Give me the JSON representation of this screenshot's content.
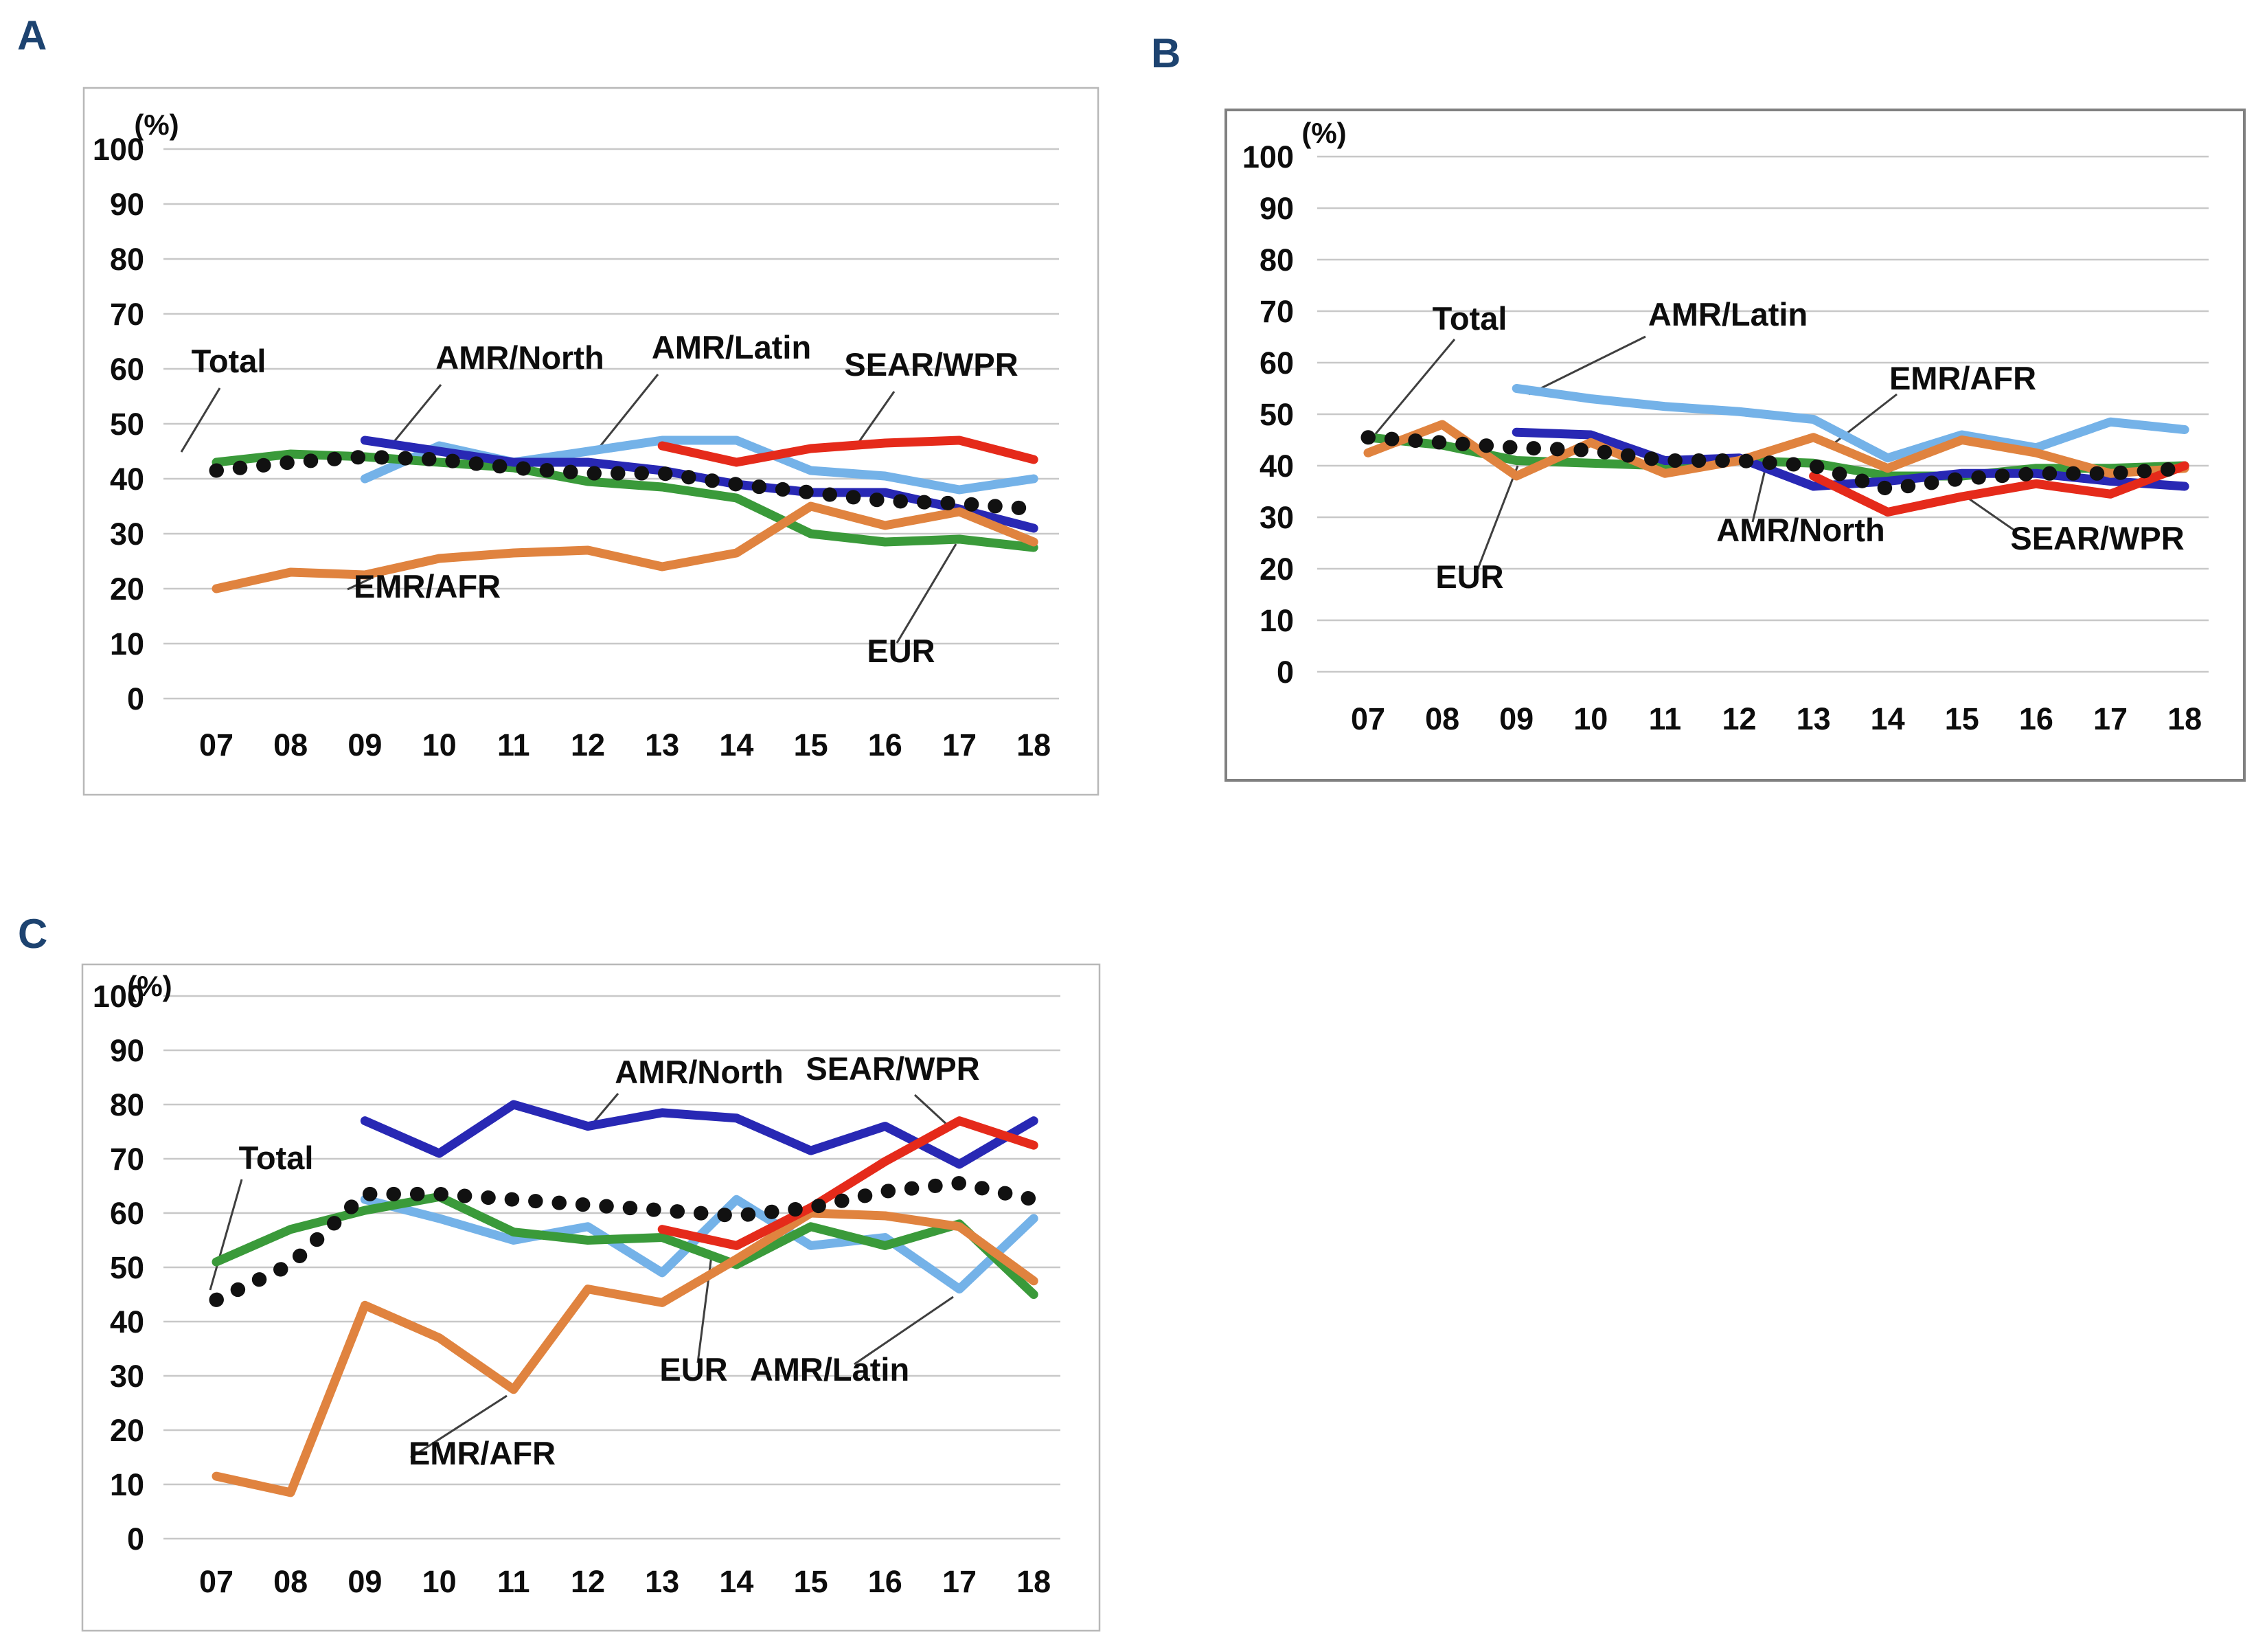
{
  "figure": {
    "background": "#ffffff",
    "panel_letter_color": "#1d4370",
    "gridline_color": "#c8c8c8",
    "leader_line_color": "#3f3f3f",
    "box_border_color_ac": "#b8b8b8",
    "box_border_color_b": "#808080",
    "text_color": "#0d0d0d"
  },
  "chart_data": [
    {
      "panel_label": "A",
      "type": "line",
      "title": "",
      "ylabel": "(%)",
      "xlabel": "",
      "ylim": [
        0,
        100
      ],
      "yticks": [
        0,
        10,
        20,
        30,
        40,
        50,
        60,
        70,
        80,
        90,
        100
      ],
      "grid": "horizontal",
      "legend": "inline-labels",
      "categories": [
        "07",
        "08",
        "09",
        "10",
        "11",
        "12",
        "13",
        "14",
        "15",
        "16",
        "17",
        "18"
      ],
      "series": [
        {
          "name": "Total",
          "color": "#111111",
          "style": "dotted",
          "values": [
            41.5,
            43,
            44,
            43.5,
            42,
            41,
            41,
            39,
            37.5,
            36,
            35.5,
            34.5
          ]
        },
        {
          "name": "AMR/North",
          "color": "#2828b4",
          "style": "solid",
          "values": [
            null,
            null,
            47,
            45,
            43,
            43,
            41.5,
            39,
            37.5,
            37.5,
            34.5,
            31
          ]
        },
        {
          "name": "AMR/Latin",
          "color": "#74b2e8",
          "style": "solid",
          "values": [
            null,
            null,
            40,
            46,
            43,
            45,
            47,
            47,
            41.5,
            40.5,
            38,
            40
          ]
        },
        {
          "name": "SEAR/WPR",
          "color": "#e52a1a",
          "style": "solid",
          "values": [
            null,
            null,
            null,
            null,
            null,
            null,
            46,
            43,
            45.5,
            46.5,
            47,
            43.5
          ]
        },
        {
          "name": "EUR",
          "color": "#3a9a3a",
          "style": "solid",
          "values": [
            43,
            44.5,
            44,
            43,
            42,
            39.5,
            38.5,
            36.5,
            30,
            28.5,
            29,
            27.5
          ]
        },
        {
          "name": "EMR/AFR",
          "color": "#e0833f",
          "style": "solid",
          "values": [
            20,
            23,
            22.5,
            25.5,
            26.5,
            27,
            24,
            26.5,
            35,
            31.5,
            34,
            28.5
          ]
        }
      ]
    },
    {
      "panel_label": "B",
      "type": "line",
      "title": "",
      "ylabel": "(%)",
      "xlabel": "",
      "ylim": [
        0,
        100
      ],
      "yticks": [
        0,
        10,
        20,
        30,
        40,
        50,
        60,
        70,
        80,
        90,
        100
      ],
      "grid": "horizontal",
      "legend": "inline-labels",
      "categories": [
        "07",
        "08",
        "09",
        "10",
        "11",
        "12",
        "13",
        "14",
        "15",
        "16",
        "17",
        "18"
      ],
      "series": [
        {
          "name": "Total",
          "color": "#111111",
          "style": "dotted",
          "values": [
            45.5,
            44.5,
            43.5,
            43,
            41,
            41,
            40,
            35.5,
            37.5,
            38.5,
            38.5,
            39.5
          ]
        },
        {
          "name": "AMR/North",
          "color": "#2828b4",
          "style": "solid",
          "values": [
            null,
            null,
            46.5,
            46,
            41,
            41.5,
            36,
            37,
            38.5,
            38.5,
            37,
            36
          ]
        },
        {
          "name": "AMR/Latin",
          "color": "#74b2e8",
          "style": "solid",
          "values": [
            null,
            null,
            55,
            53,
            51.5,
            50.5,
            49,
            41.5,
            46,
            43.5,
            48.5,
            47
          ]
        },
        {
          "name": "SEAR/WPR",
          "color": "#e52a1a",
          "style": "solid",
          "values": [
            null,
            null,
            null,
            null,
            null,
            null,
            38,
            31,
            34,
            36.5,
            34.5,
            40
          ]
        },
        {
          "name": "EUR",
          "color": "#3a9a3a",
          "style": "solid",
          "values": [
            45.5,
            44,
            41,
            40.5,
            40,
            41,
            40.5,
            38,
            38,
            39.5,
            39.5,
            40
          ]
        },
        {
          "name": "EMR/AFR",
          "color": "#e0833f",
          "style": "solid",
          "values": [
            42.5,
            48,
            38,
            44.5,
            38.5,
            41,
            45.5,
            39.5,
            45,
            42.5,
            38.5,
            39.5
          ]
        }
      ]
    },
    {
      "panel_label": "C",
      "type": "line",
      "title": "",
      "ylabel": "(%)",
      "xlabel": "",
      "ylim": [
        0,
        100
      ],
      "yticks": [
        0,
        10,
        20,
        30,
        40,
        50,
        60,
        70,
        80,
        90,
        100
      ],
      "grid": "horizontal",
      "legend": "inline-labels",
      "categories": [
        "07",
        "08",
        "09",
        "10",
        "11",
        "12",
        "13",
        "14",
        "15",
        "16",
        "17",
        "18"
      ],
      "series": [
        {
          "name": "Total",
          "color": "#111111",
          "style": "dotted",
          "values": [
            44,
            50.5,
            63.5,
            63.5,
            62.5,
            61.5,
            60.5,
            59.5,
            61,
            64,
            65.5,
            62.5
          ]
        },
        {
          "name": "AMR/North",
          "color": "#2828b4",
          "style": "solid",
          "values": [
            null,
            null,
            77,
            71,
            80,
            76,
            78.5,
            77.5,
            71.5,
            76,
            69,
            77
          ]
        },
        {
          "name": "AMR/Latin",
          "color": "#74b2e8",
          "style": "solid",
          "values": [
            null,
            null,
            62.5,
            59,
            55,
            57.5,
            49,
            62.5,
            54,
            55.5,
            46,
            59
          ]
        },
        {
          "name": "SEAR/WPR",
          "color": "#e52a1a",
          "style": "solid",
          "values": [
            null,
            null,
            null,
            null,
            null,
            null,
            57,
            54,
            61,
            69.5,
            77,
            72.5
          ]
        },
        {
          "name": "EUR",
          "color": "#3a9a3a",
          "style": "solid",
          "values": [
            51,
            57,
            60.5,
            63,
            56.5,
            55,
            55.5,
            50.5,
            57.5,
            54,
            58,
            45
          ]
        },
        {
          "name": "EMR/AFR",
          "color": "#e0833f",
          "style": "solid",
          "values": [
            11.5,
            8.5,
            43,
            37,
            27.5,
            46,
            43.5,
            51.5,
            60,
            59.5,
            57.5,
            47.5
          ]
        }
      ]
    }
  ]
}
